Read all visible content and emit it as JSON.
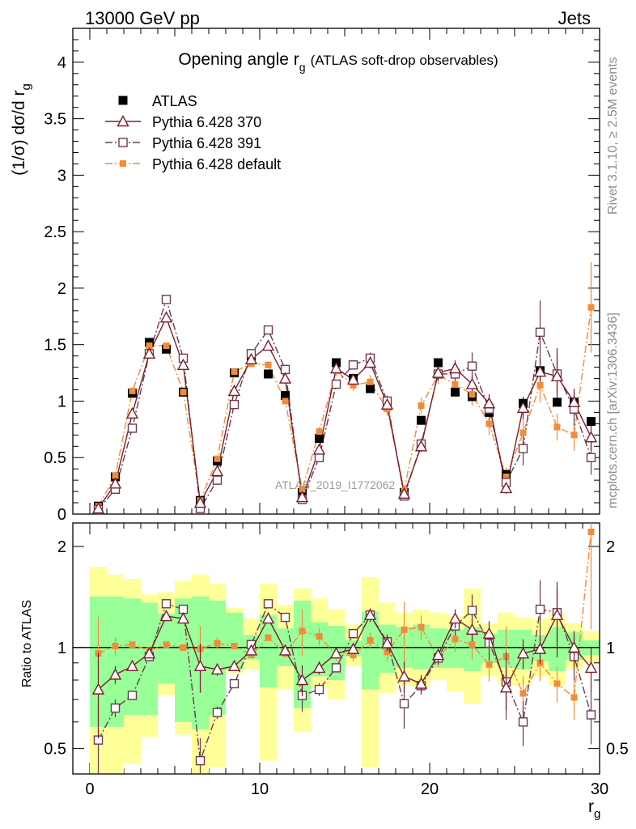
{
  "header": {
    "left": "13000 GeV pp",
    "right": "Jets"
  },
  "side_labels": {
    "rivet": "Rivet 3.1.10, ≥ 2.5M events",
    "mcplots": "mcplots.cern.ch [arXiv:1306.3436]"
  },
  "watermark": "ATLAS_2019_I1772062",
  "chart_data": {
    "type": "scatter",
    "title_main": "Opening angle r",
    "title_sub": "g",
    "title_suffix": "(ATLAS soft-drop observables)",
    "xlabel": "r",
    "xlabel_sub": "g",
    "ylabel": "(1/σ) dσ/d r",
    "ylabel_sub": "g",
    "ratio_ylabel": "Ratio to ATLAS",
    "xlim": [
      -1,
      30
    ],
    "ylim": [
      0,
      4.3
    ],
    "ratio_ylim": [
      0.42,
      2.35
    ],
    "x_ticks": [
      0,
      10,
      20,
      30
    ],
    "x_tick_labels": [
      "0",
      "10",
      "20",
      "30"
    ],
    "y_ticks": [
      0,
      0.5,
      1,
      1.5,
      2,
      2.5,
      3,
      3.5,
      4
    ],
    "y_tick_labels": [
      "0",
      "0.5",
      "1",
      "1.5",
      "2",
      "2.5",
      "3",
      "3.5",
      "4"
    ],
    "ratio_ticks": [
      0.5,
      1,
      2
    ],
    "ratio_tick_labels": [
      "0.5",
      "1",
      "2"
    ],
    "x": [
      0.5,
      1.5,
      2.5,
      3.5,
      4.5,
      5.5,
      6.5,
      7.5,
      8.5,
      9.5,
      10.5,
      11.5,
      12.5,
      13.5,
      14.5,
      15.5,
      16.5,
      17.5,
      18.5,
      19.5,
      20.5,
      21.5,
      22.5,
      23.5,
      24.5,
      25.5,
      26.5,
      27.5,
      28.5,
      29.5
    ],
    "data": {
      "name": "ATLAS",
      "values": [
        0.07,
        0.33,
        1.07,
        1.52,
        1.46,
        1.08,
        0.12,
        0.47,
        1.25,
        1.4,
        1.24,
        1.05,
        0.19,
        0.67,
        1.34,
        1.2,
        1.11,
        0.96,
        0.19,
        0.83,
        1.34,
        1.08,
        1.04,
        0.9,
        0.35,
        0.98,
        1.27,
        0.99,
        0.99,
        0.82
      ],
      "band_green_lo": [
        0.58,
        0.58,
        0.63,
        0.63,
        0.78,
        0.6,
        0.57,
        0.63,
        0.86,
        0.92,
        0.76,
        0.88,
        0.66,
        0.82,
        0.8,
        0.94,
        0.75,
        0.84,
        0.87,
        0.86,
        0.87,
        0.87,
        0.85,
        0.9,
        0.87,
        0.86,
        0.91,
        0.85,
        0.92,
        0.95
      ],
      "band_green_hi": [
        1.42,
        1.42,
        1.4,
        1.36,
        1.26,
        1.4,
        1.42,
        1.38,
        1.27,
        1.09,
        1.25,
        1.14,
        1.38,
        1.19,
        1.16,
        1.05,
        1.28,
        1.17,
        1.15,
        1.17,
        1.14,
        1.13,
        1.15,
        1.1,
        1.13,
        1.13,
        1.09,
        1.15,
        1.11,
        1.05
      ],
      "band_yellow_lo": [
        0.4,
        0.4,
        0.45,
        0.54,
        0.72,
        0.55,
        0.4,
        0.44,
        0.84,
        0.86,
        0.46,
        0.75,
        0.56,
        0.76,
        0.7,
        0.88,
        0.44,
        0.73,
        0.77,
        0.76,
        0.8,
        0.74,
        0.68,
        0.82,
        0.77,
        0.77,
        0.82,
        0.77,
        0.86,
        0.9
      ],
      "band_yellow_hi": [
        1.74,
        1.65,
        1.6,
        1.44,
        1.46,
        1.58,
        1.65,
        1.55,
        1.31,
        1.22,
        1.55,
        1.34,
        1.5,
        1.4,
        1.3,
        1.17,
        1.62,
        1.36,
        1.27,
        1.3,
        1.27,
        1.24,
        1.5,
        1.18,
        1.27,
        1.23,
        1.22,
        1.27,
        1.18,
        1.12
      ]
    },
    "series": [
      {
        "name": "Pythia 6.428 370",
        "color": "#7a1f2b",
        "marker": "triangle-open",
        "line": "solid",
        "values": [
          0.05,
          0.27,
          0.89,
          1.42,
          1.74,
          1.32,
          0.1,
          0.38,
          1.09,
          1.37,
          1.49,
          1.2,
          0.15,
          0.57,
          1.29,
          1.19,
          1.34,
          0.97,
          0.18,
          0.6,
          1.25,
          1.29,
          1.15,
          0.98,
          0.23,
          0.94,
          1.26,
          1.22,
          0.99,
          0.68
        ],
        "ratio": [
          0.75,
          0.83,
          0.88,
          0.96,
          1.24,
          1.22,
          0.88,
          0.86,
          0.88,
          0.98,
          1.22,
          0.98,
          0.8,
          0.87,
          0.96,
          0.99,
          1.25,
          1.03,
          0.82,
          0.78,
          0.95,
          1.22,
          1.13,
          1.1,
          0.76,
          0.96,
          0.99,
          1.25,
          1.0,
          0.87
        ],
        "errors": [
          0.02,
          0.02,
          0.02,
          0.02,
          0.02,
          0.02,
          0.02,
          0.02,
          0.02,
          0.02,
          0.03,
          0.03,
          0.02,
          0.03,
          0.04,
          0.04,
          0.05,
          0.05,
          0.02,
          0.05,
          0.06,
          0.07,
          0.08,
          0.08,
          0.05,
          0.1,
          0.12,
          0.25,
          0.12,
          0.12
        ]
      },
      {
        "name": "Pythia 6.428 391",
        "color": "#6b3a4e",
        "marker": "square-open",
        "line": "dashdot",
        "values": [
          0.04,
          0.22,
          0.76,
          1.42,
          1.9,
          1.38,
          0.05,
          0.3,
          0.97,
          1.42,
          1.63,
          1.28,
          0.13,
          0.5,
          1.15,
          1.32,
          1.38,
          1.0,
          0.16,
          0.62,
          1.24,
          1.24,
          1.31,
          0.93,
          0.28,
          0.58,
          1.61,
          1.24,
          0.93,
          0.5
        ],
        "ratio": [
          0.53,
          0.66,
          0.72,
          0.94,
          1.35,
          1.3,
          0.46,
          0.64,
          0.78,
          1.02,
          1.35,
          1.23,
          0.72,
          0.75,
          0.87,
          1.1,
          1.25,
          1.04,
          0.68,
          0.77,
          0.93,
          1.16,
          1.29,
          1.03,
          0.79,
          0.6,
          1.3,
          1.27,
          0.94,
          0.63
        ],
        "errors": [
          0.02,
          0.02,
          0.02,
          0.02,
          0.02,
          0.02,
          0.02,
          0.02,
          0.02,
          0.02,
          0.03,
          0.03,
          0.02,
          0.03,
          0.04,
          0.04,
          0.05,
          0.05,
          0.03,
          0.05,
          0.06,
          0.07,
          0.12,
          0.1,
          0.08,
          0.15,
          0.28,
          0.18,
          0.15,
          0.15
        ]
      },
      {
        "name": "Pythia 6.428 default",
        "color": "#f28c3a",
        "marker": "square-filled",
        "line": "dashdot",
        "values": [
          0.07,
          0.34,
          1.09,
          1.49,
          1.49,
          1.08,
          0.12,
          0.49,
          1.26,
          1.33,
          1.32,
          1.0,
          0.22,
          0.73,
          1.27,
          1.14,
          1.17,
          0.93,
          0.21,
          0.96,
          1.23,
          1.15,
          1.06,
          0.8,
          0.33,
          0.72,
          1.14,
          0.77,
          0.7,
          1.83
        ],
        "ratio": [
          0.96,
          1.01,
          1.02,
          0.98,
          1.02,
          1.0,
          0.99,
          1.03,
          1.01,
          0.95,
          1.07,
          0.96,
          1.12,
          1.08,
          0.95,
          0.95,
          1.05,
          0.97,
          1.13,
          1.15,
          0.93,
          1.06,
          1.02,
          0.89,
          0.94,
          0.73,
          0.9,
          0.78,
          0.71,
          2.21
        ],
        "errors": [
          0.02,
          0.02,
          0.02,
          0.02,
          0.02,
          0.02,
          0.02,
          0.02,
          0.02,
          0.02,
          0.03,
          0.03,
          0.03,
          0.04,
          0.05,
          0.05,
          0.06,
          0.06,
          0.04,
          0.07,
          0.08,
          0.09,
          0.1,
          0.1,
          0.08,
          0.12,
          0.15,
          0.12,
          0.14,
          0.4
        ]
      }
    ]
  }
}
